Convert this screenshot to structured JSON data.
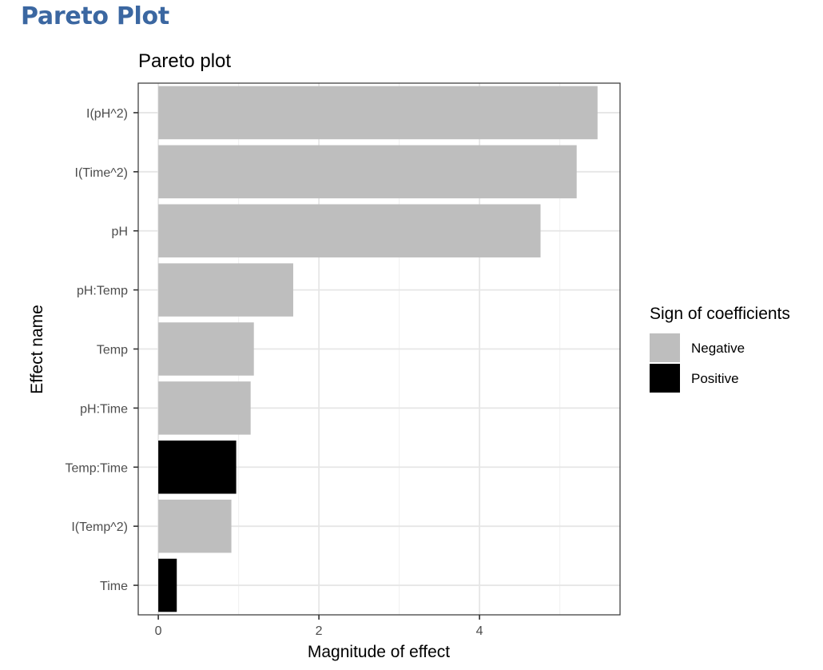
{
  "page": {
    "heading": "Pareto Plot"
  },
  "chart_data": {
    "type": "bar",
    "orientation": "horizontal",
    "title": "Pareto plot",
    "xlabel": "Magnitude of effect",
    "ylabel": "Effect name",
    "xlim": [
      -0.25,
      5.75
    ],
    "xticks": [
      0,
      2,
      4
    ],
    "grid": true,
    "categories": [
      "I(pH^2)",
      "I(Time^2)",
      "pH",
      "pH:Temp",
      "Temp",
      "pH:Time",
      "Temp:Time",
      "I(Temp^2)",
      "Time"
    ],
    "values": [
      5.47,
      5.21,
      4.76,
      1.68,
      1.19,
      1.15,
      0.97,
      0.91,
      0.23
    ],
    "signs": [
      "Negative",
      "Negative",
      "Negative",
      "Negative",
      "Negative",
      "Negative",
      "Positive",
      "Negative",
      "Positive"
    ],
    "legend": {
      "title": "Sign of coefficients",
      "position": "right",
      "entries": [
        {
          "label": "Negative",
          "color": "#bebebe"
        },
        {
          "label": "Positive",
          "color": "#000000"
        }
      ]
    },
    "colors": {
      "Negative": "#bebebe",
      "Positive": "#000000"
    }
  }
}
